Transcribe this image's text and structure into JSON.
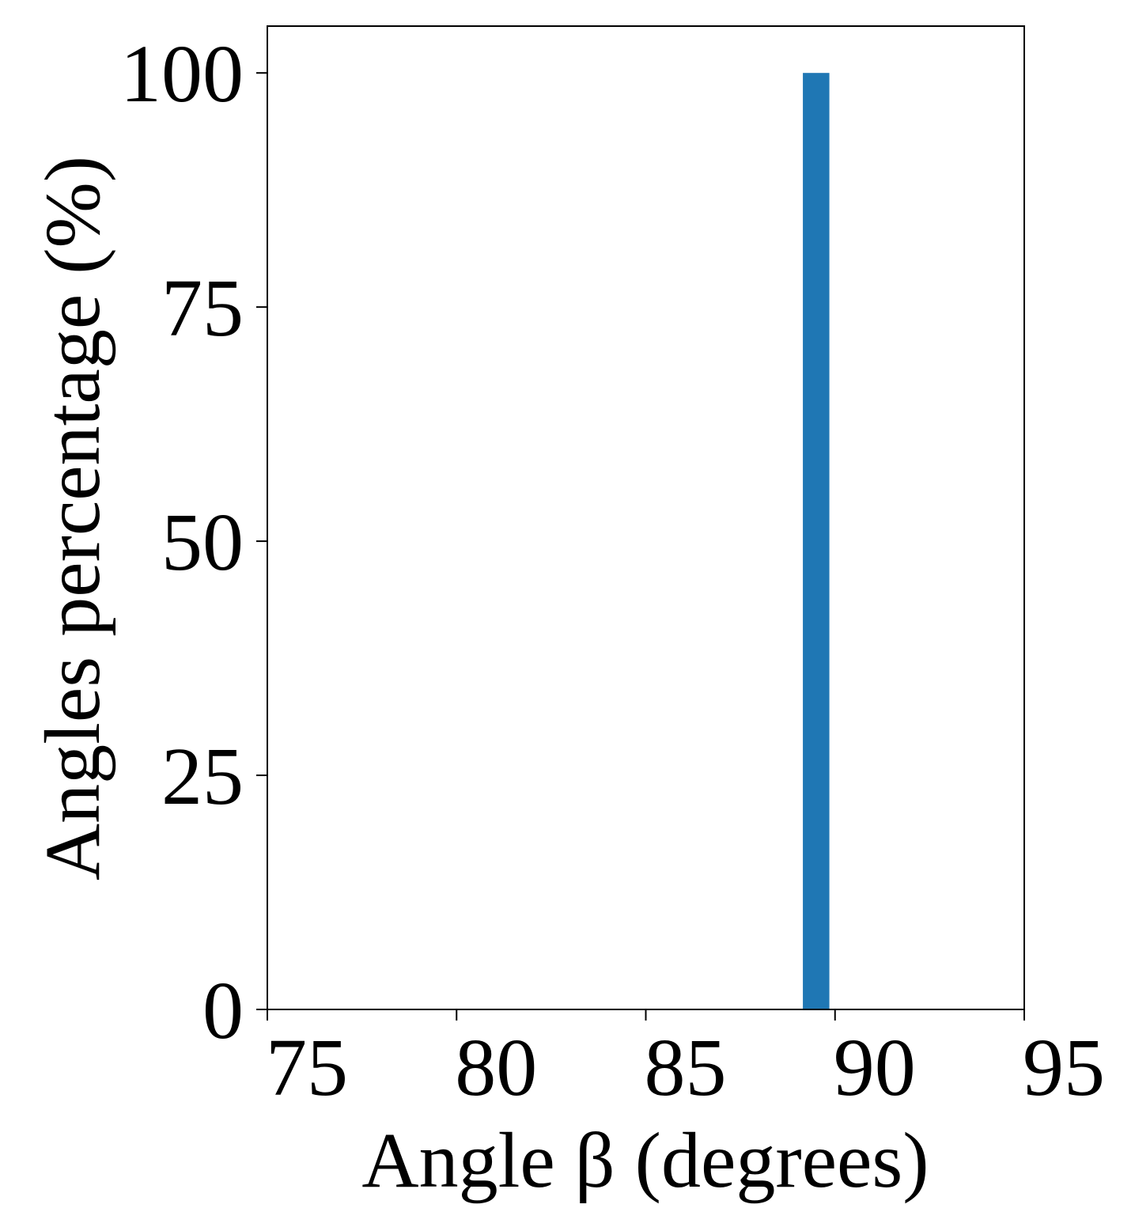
{
  "chart_data": {
    "type": "histogram",
    "xlabel": "Angle β (degrees)",
    "ylabel": "Angles percentage (%)",
    "bins": [
      89.15,
      89.85
    ],
    "values": [
      100
    ],
    "color": "#1f77b4",
    "xlim": [
      75,
      95
    ],
    "xticks": [
      75,
      80,
      85,
      90,
      95
    ],
    "ylim": [
      0,
      105
    ],
    "yticks": [
      0,
      25,
      50,
      75,
      100
    ],
    "grid": false
  }
}
